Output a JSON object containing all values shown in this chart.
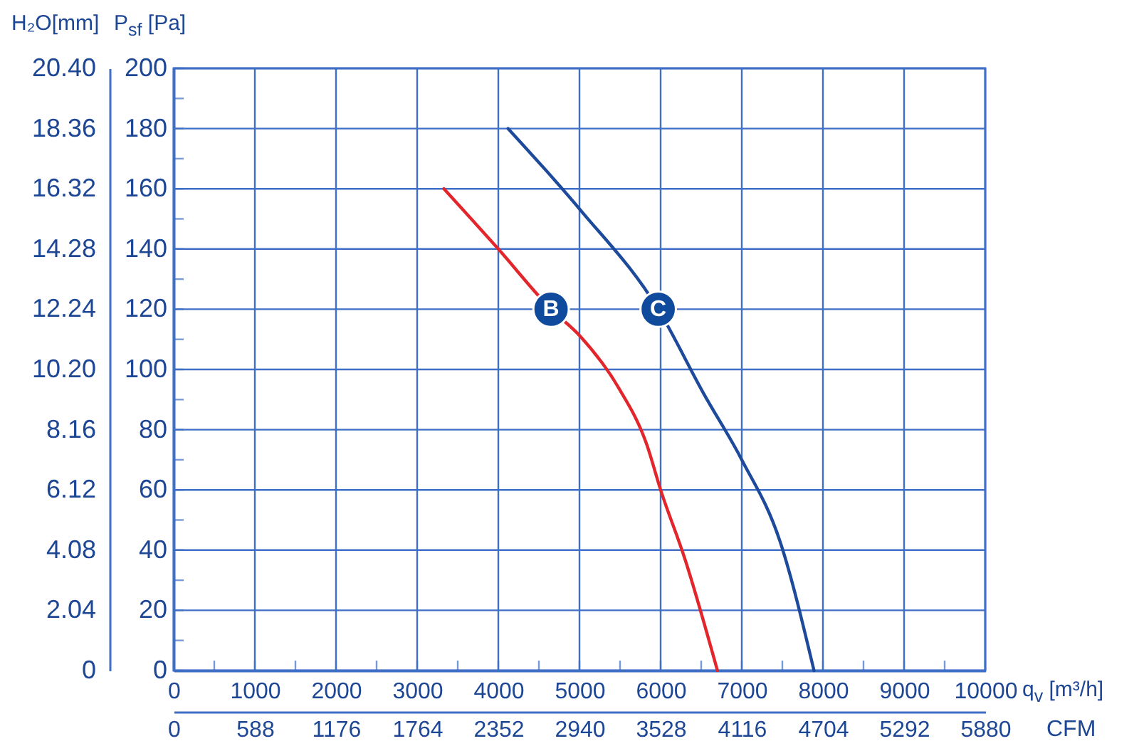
{
  "chart_data": {
    "type": "line",
    "xlabel": "q$_{v}$ [m³/h]",
    "ylabel": "P$_{sf}$ [Pa]",
    "y2label": "H₂O[mm]",
    "x2label": "CFM",
    "series": [
      {
        "color": "#e3262b",
        "x": [
          3330,
          4000,
          4650,
          5010,
          5480,
          5830,
          6000,
          6300,
          6700
        ],
        "values": [
          160,
          140,
          120,
          111,
          94,
          75,
          60,
          37,
          0
        ]
      },
      {
        "color": "#1d4a9a",
        "x": [
          4120,
          5010,
          5970,
          6530,
          7000,
          7470,
          7890
        ],
        "values": [
          180,
          153,
          120,
          92,
          70,
          43,
          0
        ]
      }
    ],
    "annotations": [
      {
        "text": "B",
        "x": 4650,
        "y": 120
      },
      {
        "text": "C",
        "x": 5970,
        "y": 120
      }
    ],
    "xlim": [
      0,
      10000
    ],
    "xticks": [
      0,
      {
        "value": 500,
        "label": null
      },
      1000,
      {
        "value": 1500,
        "label": null
      },
      2000,
      {
        "value": 2500,
        "label": null
      },
      3000,
      {
        "value": 3500,
        "label": null
      },
      4000,
      {
        "value": 4500,
        "label": null
      },
      5000,
      {
        "value": 5500,
        "label": null
      },
      6000,
      {
        "value": 6500,
        "label": null
      },
      7000,
      {
        "value": 7500,
        "label": null
      },
      8000,
      {
        "value": 8500,
        "label": null
      },
      9000,
      {
        "value": 9500,
        "label": null
      },
      10000
    ],
    "ylim": [
      0,
      200
    ],
    "yticks": [
      0,
      {
        "value": 10,
        "label": null
      },
      20,
      {
        "value": 30,
        "label": null
      },
      40,
      {
        "value": 50,
        "label": null
      },
      60,
      {
        "value": 70,
        "label": null
      },
      80,
      {
        "value": 90,
        "label": null
      },
      100,
      {
        "value": 110,
        "label": null
      },
      120,
      {
        "value": 130,
        "label": null
      },
      140,
      {
        "value": 150,
        "label": null
      },
      160,
      {
        "value": 170,
        "label": null
      },
      180,
      {
        "value": 190,
        "label": null
      },
      200
    ],
    "x2lim": [
      0,
      5880
    ],
    "x2ticks": [
      0,
      588,
      1176,
      1764,
      2352,
      2940,
      3528,
      4116,
      4704,
      5292,
      5880
    ],
    "y2lim": [
      0,
      20.4
    ],
    "y2ticks": [
      0,
      2.04,
      4.08,
      6.12,
      8.16,
      {
        "value": 10.2,
        "label": "10.20"
      },
      12.24,
      14.28,
      16.32,
      18.36,
      {
        "value": 20.4,
        "label": "20.40"
      }
    ],
    "grid": true
  }
}
